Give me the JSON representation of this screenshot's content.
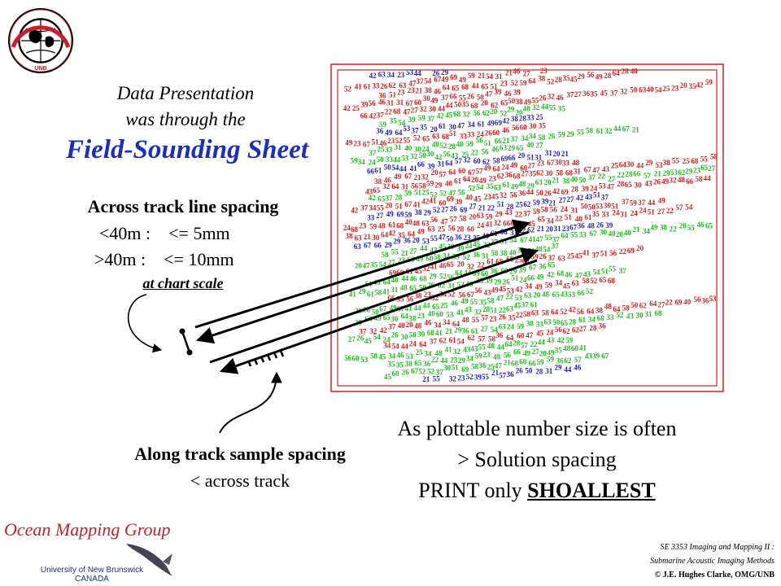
{
  "logo": {
    "seal_text": "GEODESY AND GEOMATICS ENGINEERING",
    "seal_bottom": "UNB"
  },
  "intro": {
    "line1": "Data Presentation",
    "line2": "was through the",
    "headline": "Field-Sounding Sheet"
  },
  "across_track": {
    "heading": "Across track line spacing",
    "row1": "<40m :    <= 5mm",
    "row2": ">40m :    <= 10mm",
    "note": "at chart scale"
  },
  "along_track": {
    "heading": "Along track sample spacing",
    "sub": "< across track"
  },
  "plot_note": {
    "line1": "As plottable number size is often",
    "line2": "> Solution spacing",
    "line3_prefix": "PRINT only ",
    "line3_emph": "SHOALLEST"
  },
  "footer": {
    "group": "Ocean Mapping Group",
    "univ1": "University of New Brunswick",
    "univ2": "CANADA",
    "course1": "SE 3353 Imaging and Mapping II :",
    "course2": "Submarine Acoustic Imaging Methods",
    "copyright": "© J.E. Hughes Clarke, OMG/UNB"
  },
  "colors": {
    "headline": "#1a2fbf",
    "sheet_frame": "#d42020",
    "sounding_red": "#e01818",
    "sounding_blue": "#1c1ccc",
    "sounding_green": "#18c018",
    "group_title": "#c8202a"
  },
  "icons": {
    "seal": "university-seal-icon",
    "whale": "whale-logo-icon"
  }
}
